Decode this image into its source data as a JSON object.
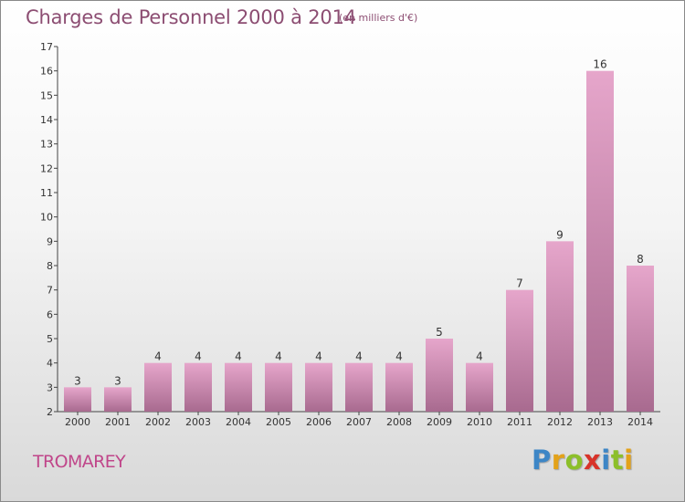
{
  "header": {
    "title": "Charges de Personnel 2000 à 2014",
    "subtitle": "(en milliers d'€)"
  },
  "footer": {
    "commune": "TROMAREY",
    "logo_letters": [
      {
        "char": "P",
        "color": "#3d86c6"
      },
      {
        "char": "r",
        "color": "#e3a21a"
      },
      {
        "char": "o",
        "color": "#8cbf2a"
      },
      {
        "char": "x",
        "color": "#d8332a"
      },
      {
        "char": "i",
        "color": "#3d86c6"
      },
      {
        "char": "t",
        "color": "#8cbf2a"
      },
      {
        "char": "i",
        "color": "#e3a21a"
      }
    ]
  },
  "chart_data": {
    "type": "bar",
    "title": "Charges de Personnel 2000 à 2014",
    "subtitle": "(en milliers d'€)",
    "categories": [
      "2000",
      "2001",
      "2002",
      "2003",
      "2004",
      "2005",
      "2006",
      "2007",
      "2008",
      "2009",
      "2010",
      "2011",
      "2012",
      "2013",
      "2014"
    ],
    "values": [
      3,
      3,
      4,
      4,
      4,
      4,
      4,
      4,
      4,
      5,
      4,
      7,
      9,
      16,
      8
    ],
    "data_labels": [
      "3",
      "3",
      "4",
      "4",
      "4",
      "4",
      "4",
      "4",
      "4",
      "5",
      "4",
      "7",
      "9",
      "16",
      "8"
    ],
    "xlabel": "",
    "ylabel": "",
    "ylim": [
      2,
      17
    ],
    "y_ticks": [
      "2",
      "3",
      "4",
      "5",
      "6",
      "7",
      "8",
      "9",
      "10",
      "11",
      "12",
      "13",
      "14",
      "15",
      "16",
      "17"
    ],
    "grid": false,
    "bar_color_top": "#e6a6cb",
    "bar_color_bottom": "#a86a8f"
  }
}
